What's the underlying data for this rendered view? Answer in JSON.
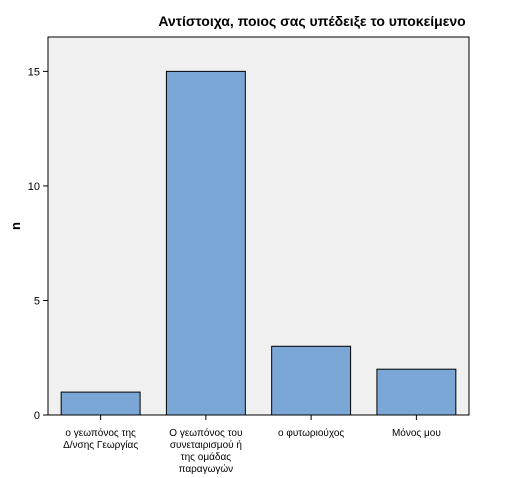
{
  "chart_data": {
    "type": "bar",
    "title": "Αντίστοιχα, ποιος σας υπέδειξε το υποκείμενο",
    "xlabel": "",
    "ylabel": "n",
    "categories": [
      [
        "ο γεωπόνος της",
        "Δ/νσης Γεωργίας"
      ],
      [
        "Ο γεωπόνος του",
        "συνεταιρισμού ή",
        "της ομάδας",
        "παραγωγών"
      ],
      [
        "ο φυτωριούχος"
      ],
      [
        "Μόνος μου"
      ]
    ],
    "values": [
      1,
      15,
      3,
      2
    ],
    "ylim": [
      0,
      16.5
    ],
    "yticks": [
      0,
      5,
      10,
      15
    ],
    "grid": false,
    "colors": {
      "bar_fill": "#7BA7D7",
      "bar_stroke": "#000000",
      "plot_background": "#F0F0F0",
      "axis": "#000000"
    }
  }
}
